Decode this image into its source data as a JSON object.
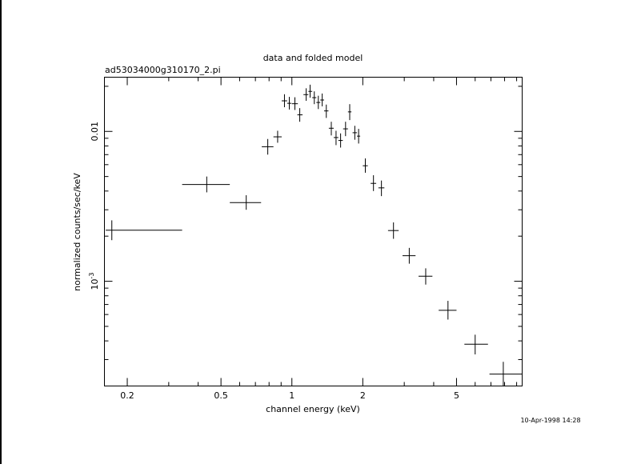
{
  "chart_data": {
    "type": "scatter",
    "title": "data and folded model",
    "subtitle": "ad53034000g310170_2.pi",
    "xlabel": "channel energy (keV)",
    "ylabel": "normalized counts/sec/keV",
    "timestamp": "10-Apr-1998 14:28",
    "x_scale": "log",
    "y_scale": "log",
    "xlim": [
      0.16,
      9.5
    ],
    "ylim": [
      0.0002,
      0.023
    ],
    "x_ticks": [
      {
        "value": 0.2,
        "label": "0.2"
      },
      {
        "value": 0.5,
        "label": "0.5"
      },
      {
        "value": 1,
        "label": "1"
      },
      {
        "value": 2,
        "label": "2"
      },
      {
        "value": 5,
        "label": "5"
      }
    ],
    "y_ticks": [
      {
        "value": 0.01,
        "label": "0.01"
      },
      {
        "value": 0.001,
        "label": "10",
        "exponent": "-3"
      }
    ],
    "grid": false,
    "legend": "none",
    "series": [
      {
        "marker": "error-cross",
        "color": "#000000",
        "points": [
          {
            "x": 0.172,
            "y": 0.00219,
            "xlo": 0.162,
            "xhi": 0.342,
            "ylo": 0.00188,
            "yhi": 0.00255
          },
          {
            "x": 0.435,
            "y": 0.00442,
            "xlo": 0.342,
            "xhi": 0.545,
            "ylo": 0.00392,
            "yhi": 0.005
          },
          {
            "x": 0.64,
            "y": 0.00335,
            "xlo": 0.545,
            "xhi": 0.74,
            "ylo": 0.003,
            "yhi": 0.00375
          },
          {
            "x": 0.79,
            "y": 0.0079,
            "xlo": 0.745,
            "xhi": 0.835,
            "ylo": 0.007,
            "yhi": 0.0089
          },
          {
            "x": 0.87,
            "y": 0.0092,
            "xlo": 0.835,
            "xhi": 0.905,
            "ylo": 0.0084,
            "yhi": 0.0101
          },
          {
            "x": 0.93,
            "y": 0.016,
            "xlo": 0.905,
            "xhi": 0.955,
            "ylo": 0.0145,
            "yhi": 0.0177
          },
          {
            "x": 0.975,
            "y": 0.0154,
            "xlo": 0.955,
            "xhi": 0.995,
            "ylo": 0.014,
            "yhi": 0.017
          },
          {
            "x": 1.03,
            "y": 0.0153,
            "xlo": 1.0,
            "xhi": 1.06,
            "ylo": 0.0139,
            "yhi": 0.0169
          },
          {
            "x": 1.08,
            "y": 0.0129,
            "xlo": 1.055,
            "xhi": 1.11,
            "ylo": 0.0116,
            "yhi": 0.0143
          },
          {
            "x": 1.15,
            "y": 0.0176,
            "xlo": 1.12,
            "xhi": 1.175,
            "ylo": 0.016,
            "yhi": 0.0194
          },
          {
            "x": 1.195,
            "y": 0.0185,
            "xlo": 1.175,
            "xhi": 1.22,
            "ylo": 0.0168,
            "yhi": 0.0205
          },
          {
            "x": 1.245,
            "y": 0.0168,
            "xlo": 1.22,
            "xhi": 1.27,
            "ylo": 0.0152,
            "yhi": 0.0185
          },
          {
            "x": 1.295,
            "y": 0.0156,
            "xlo": 1.27,
            "xhi": 1.32,
            "ylo": 0.0141,
            "yhi": 0.0173
          },
          {
            "x": 1.345,
            "y": 0.0162,
            "xlo": 1.32,
            "xhi": 1.37,
            "ylo": 0.0147,
            "yhi": 0.0179
          },
          {
            "x": 1.4,
            "y": 0.0137,
            "xlo": 1.37,
            "xhi": 1.43,
            "ylo": 0.0123,
            "yhi": 0.0151
          },
          {
            "x": 1.47,
            "y": 0.0105,
            "xlo": 1.435,
            "xhi": 1.505,
            "ylo": 0.0094,
            "yhi": 0.0116
          },
          {
            "x": 1.54,
            "y": 0.0091,
            "xlo": 1.505,
            "xhi": 1.575,
            "ylo": 0.0081,
            "yhi": 0.0101
          },
          {
            "x": 1.61,
            "y": 0.0087,
            "xlo": 1.575,
            "xhi": 1.645,
            "ylo": 0.0078,
            "yhi": 0.0097
          },
          {
            "x": 1.69,
            "y": 0.0104,
            "xlo": 1.65,
            "xhi": 1.73,
            "ylo": 0.0093,
            "yhi": 0.0116
          },
          {
            "x": 1.76,
            "y": 0.0135,
            "xlo": 1.73,
            "xhi": 1.79,
            "ylo": 0.0119,
            "yhi": 0.0152
          },
          {
            "x": 1.85,
            "y": 0.0098,
            "xlo": 1.81,
            "xhi": 1.89,
            "ylo": 0.0088,
            "yhi": 0.0109
          },
          {
            "x": 1.92,
            "y": 0.0093,
            "xlo": 1.89,
            "xhi": 1.95,
            "ylo": 0.0083,
            "yhi": 0.0104
          },
          {
            "x": 2.05,
            "y": 0.0059,
            "xlo": 2.0,
            "xhi": 2.1,
            "ylo": 0.0053,
            "yhi": 0.0066
          },
          {
            "x": 2.22,
            "y": 0.0045,
            "xlo": 2.16,
            "xhi": 2.28,
            "ylo": 0.004,
            "yhi": 0.0051
          },
          {
            "x": 2.4,
            "y": 0.0042,
            "xlo": 2.33,
            "xhi": 2.47,
            "ylo": 0.0037,
            "yhi": 0.0047
          },
          {
            "x": 2.7,
            "y": 0.00218,
            "xlo": 2.56,
            "xhi": 2.84,
            "ylo": 0.00192,
            "yhi": 0.00247
          },
          {
            "x": 3.15,
            "y": 0.00148,
            "xlo": 2.95,
            "xhi": 3.35,
            "ylo": 0.00131,
            "yhi": 0.00167
          },
          {
            "x": 3.7,
            "y": 0.00108,
            "xlo": 3.45,
            "xhi": 3.95,
            "ylo": 0.00095,
            "yhi": 0.00122
          },
          {
            "x": 4.6,
            "y": 0.00064,
            "xlo": 4.2,
            "xhi": 5.0,
            "ylo": 0.000555,
            "yhi": 0.00074
          },
          {
            "x": 6.0,
            "y": 0.00038,
            "xlo": 5.4,
            "xhi": 6.8,
            "ylo": 0.000325,
            "yhi": 0.00044
          },
          {
            "x": 7.9,
            "y": 0.00024,
            "xlo": 6.9,
            "xhi": 9.5,
            "ylo": 0.0002,
            "yhi": 0.00029
          }
        ]
      }
    ]
  }
}
